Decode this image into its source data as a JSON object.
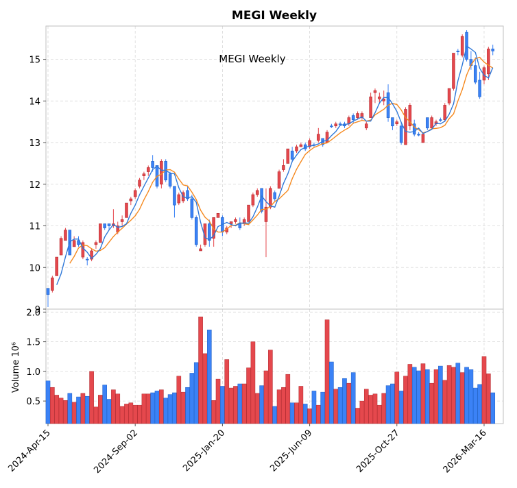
{
  "chart_data": {
    "type": "candlestick",
    "title": "MEGI  Weekly",
    "annotation": "MEGI  Weekly",
    "price_ylim": [
      9.0,
      15.8
    ],
    "price_yticks": [
      "9",
      "10",
      "11",
      "12",
      "13",
      "14",
      "15"
    ],
    "volume_ylabel": "Volume  10⁶",
    "volume_ylim": [
      0.12,
      2.05
    ],
    "volume_yticks": [
      "0.5",
      "1.0",
      "1.5",
      "2.0"
    ],
    "x_tick_labels": [
      "2024-Apr-15",
      "2024-Sep-02",
      "2025-Jan-20",
      "2025-Jun-09",
      "2025-Oct-27",
      "2026-Mar-16"
    ],
    "x_tick_index": [
      0,
      20,
      40,
      60,
      80,
      100
    ],
    "legend": "none",
    "colors": {
      "up": "#3b82f6",
      "down": "#e5484d",
      "up_edge": "#1d5fc4",
      "down_edge": "#b02a2f",
      "ma_fast": "#2f78d8",
      "ma_slow": "#f5891f"
    },
    "candles": [
      [
        9.35,
        9.5,
        9.05,
        9.5,
        0.84
      ],
      [
        9.75,
        9.8,
        9.4,
        9.45,
        0.73
      ],
      [
        10.25,
        10.25,
        9.8,
        9.8,
        0.6
      ],
      [
        10.7,
        10.75,
        10.3,
        10.3,
        0.55
      ],
      [
        10.9,
        10.95,
        10.65,
        10.65,
        0.51
      ],
      [
        10.3,
        10.9,
        10.3,
        10.9,
        0.63
      ],
      [
        10.65,
        10.75,
        10.5,
        10.5,
        0.48
      ],
      [
        10.55,
        10.75,
        10.5,
        10.65,
        0.57
      ],
      [
        10.6,
        10.65,
        10.2,
        10.25,
        0.63
      ],
      [
        10.2,
        10.25,
        10.05,
        10.2,
        0.58
      ],
      [
        10.4,
        10.45,
        10.15,
        10.2,
        1.0
      ],
      [
        10.6,
        10.65,
        10.45,
        10.55,
        0.4
      ],
      [
        11.05,
        11.05,
        10.6,
        10.6,
        0.6
      ],
      [
        10.95,
        11.05,
        10.9,
        11.05,
        0.77
      ],
      [
        11.0,
        11.05,
        10.9,
        11.05,
        0.53
      ],
      [
        11.05,
        11.4,
        10.95,
        11.0,
        0.69
      ],
      [
        11.0,
        11.1,
        10.8,
        10.85,
        0.62
      ],
      [
        11.15,
        11.25,
        11.0,
        11.1,
        0.41
      ],
      [
        11.55,
        11.55,
        11.2,
        11.2,
        0.45
      ],
      [
        11.65,
        11.7,
        11.5,
        11.6,
        0.47
      ],
      [
        11.85,
        11.9,
        11.65,
        11.7,
        0.43
      ],
      [
        12.1,
        12.15,
        11.9,
        11.95,
        0.43
      ],
      [
        12.25,
        12.3,
        12.1,
        12.2,
        0.62
      ],
      [
        12.4,
        12.45,
        12.2,
        12.3,
        0.62
      ],
      [
        12.4,
        12.7,
        12.3,
        12.55,
        0.64
      ],
      [
        11.95,
        12.45,
        11.9,
        12.45,
        0.67
      ],
      [
        12.55,
        12.6,
        11.9,
        12.0,
        0.69
      ],
      [
        12.1,
        12.6,
        12.05,
        12.55,
        0.55
      ],
      [
        11.95,
        12.3,
        11.9,
        12.25,
        0.61
      ],
      [
        11.5,
        11.95,
        11.2,
        11.95,
        0.64
      ],
      [
        11.75,
        11.8,
        11.5,
        11.55,
        0.92
      ],
      [
        11.8,
        11.85,
        11.55,
        11.6,
        0.65
      ],
      [
        11.65,
        11.95,
        11.6,
        11.85,
        0.73
      ],
      [
        11.2,
        11.75,
        11.15,
        11.65,
        0.97
      ],
      [
        10.55,
        11.25,
        10.5,
        11.2,
        1.15
      ],
      [
        10.45,
        10.55,
        10.4,
        10.4,
        1.92
      ],
      [
        11.05,
        11.05,
        10.5,
        10.55,
        1.3
      ],
      [
        10.65,
        11.15,
        10.5,
        11.05,
        1.7
      ],
      [
        11.2,
        11.2,
        10.5,
        10.7,
        0.51
      ],
      [
        11.3,
        11.3,
        11.2,
        11.2,
        0.87
      ],
      [
        10.85,
        11.25,
        10.75,
        11.2,
        0.75
      ],
      [
        10.95,
        11.0,
        10.8,
        10.85,
        1.2
      ],
      [
        11.1,
        11.1,
        10.95,
        11.05,
        0.72
      ],
      [
        11.15,
        11.2,
        11.05,
        11.1,
        0.75
      ],
      [
        10.95,
        11.2,
        10.9,
        11.05,
        0.79
      ],
      [
        11.15,
        11.2,
        11.0,
        11.05,
        0.79
      ],
      [
        11.5,
        11.5,
        11.1,
        11.1,
        1.06
      ],
      [
        11.75,
        11.8,
        11.45,
        11.5,
        1.5
      ],
      [
        11.85,
        11.9,
        11.7,
        11.75,
        0.63
      ],
      [
        11.35,
        11.9,
        11.3,
        11.9,
        0.76
      ],
      [
        11.45,
        11.9,
        10.25,
        11.1,
        1.01
      ],
      [
        11.9,
        11.95,
        11.4,
        11.45,
        1.36
      ],
      [
        11.65,
        11.85,
        11.6,
        11.8,
        0.41
      ],
      [
        12.3,
        12.35,
        11.9,
        11.9,
        0.69
      ],
      [
        12.45,
        12.6,
        12.3,
        12.35,
        0.73
      ],
      [
        12.85,
        12.85,
        12.5,
        12.5,
        0.95
      ],
      [
        12.6,
        12.9,
        12.55,
        12.8,
        0.47
      ],
      [
        12.9,
        12.95,
        12.75,
        12.8,
        0.47
      ],
      [
        12.95,
        13.0,
        12.9,
        12.9,
        0.75
      ],
      [
        12.85,
        13.0,
        12.8,
        12.95,
        0.45
      ],
      [
        13.05,
        13.1,
        12.85,
        12.9,
        0.37
      ],
      [
        12.95,
        13.0,
        12.9,
        12.95,
        0.67
      ],
      [
        13.2,
        13.35,
        13.0,
        13.05,
        0.43
      ],
      [
        12.95,
        13.1,
        12.9,
        13.1,
        0.65
      ],
      [
        13.25,
        13.3,
        13.0,
        13.0,
        1.87
      ],
      [
        13.4,
        13.45,
        13.35,
        13.4,
        1.16
      ],
      [
        13.45,
        13.5,
        13.35,
        13.4,
        0.7
      ],
      [
        13.45,
        13.5,
        13.4,
        13.45,
        0.73
      ],
      [
        13.4,
        13.5,
        13.35,
        13.45,
        0.88
      ],
      [
        13.6,
        13.65,
        13.4,
        13.45,
        0.8
      ],
      [
        13.55,
        13.7,
        13.45,
        13.65,
        0.98
      ],
      [
        13.7,
        13.75,
        13.55,
        13.6,
        0.38
      ],
      [
        13.7,
        13.75,
        13.55,
        13.6,
        0.5
      ],
      [
        13.45,
        13.5,
        13.3,
        13.35,
        0.7
      ],
      [
        14.1,
        14.2,
        13.6,
        13.6,
        0.6
      ],
      [
        14.25,
        14.3,
        13.95,
        14.2,
        0.62
      ],
      [
        14.1,
        14.2,
        13.95,
        14.05,
        0.43
      ],
      [
        14.05,
        14.25,
        13.9,
        14.0,
        0.63
      ],
      [
        13.6,
        14.4,
        13.5,
        14.2,
        0.76
      ],
      [
        13.4,
        13.6,
        13.3,
        13.6,
        0.79
      ],
      [
        13.5,
        13.55,
        13.4,
        13.45,
        0.99
      ],
      [
        13.0,
        13.5,
        12.95,
        13.4,
        0.67
      ],
      [
        13.8,
        13.85,
        12.95,
        12.95,
        0.92
      ],
      [
        13.9,
        13.95,
        13.3,
        13.4,
        1.12
      ],
      [
        13.2,
        13.55,
        13.15,
        13.45,
        1.07
      ],
      [
        13.2,
        13.25,
        13.15,
        13.2,
        1.01
      ],
      [
        13.2,
        13.25,
        13.0,
        13.0,
        1.13
      ],
      [
        13.35,
        13.6,
        13.3,
        13.6,
        1.03
      ],
      [
        13.6,
        13.65,
        13.35,
        13.35,
        0.8
      ],
      [
        13.5,
        13.55,
        13.4,
        13.45,
        1.03
      ],
      [
        13.55,
        13.6,
        13.5,
        13.55,
        1.09
      ],
      [
        13.9,
        13.95,
        13.5,
        13.55,
        0.85
      ],
      [
        14.3,
        14.3,
        13.9,
        13.95,
        1.1
      ],
      [
        15.15,
        15.15,
        14.25,
        14.3,
        1.07
      ],
      [
        15.2,
        15.25,
        15.1,
        15.2,
        1.14
      ],
      [
        15.55,
        15.6,
        15.05,
        15.1,
        0.98
      ],
      [
        15.0,
        15.7,
        14.95,
        15.65,
        1.07
      ],
      [
        14.85,
        15.2,
        14.75,
        15.0,
        1.03
      ],
      [
        14.45,
        15.05,
        14.4,
        14.85,
        0.72
      ],
      [
        14.1,
        14.7,
        14.05,
        14.5,
        0.78
      ],
      [
        14.8,
        14.85,
        14.4,
        14.5,
        1.25
      ],
      [
        15.25,
        15.3,
        14.5,
        14.65,
        0.96
      ],
      [
        15.2,
        15.35,
        15.1,
        15.25,
        0.64
      ]
    ]
  }
}
